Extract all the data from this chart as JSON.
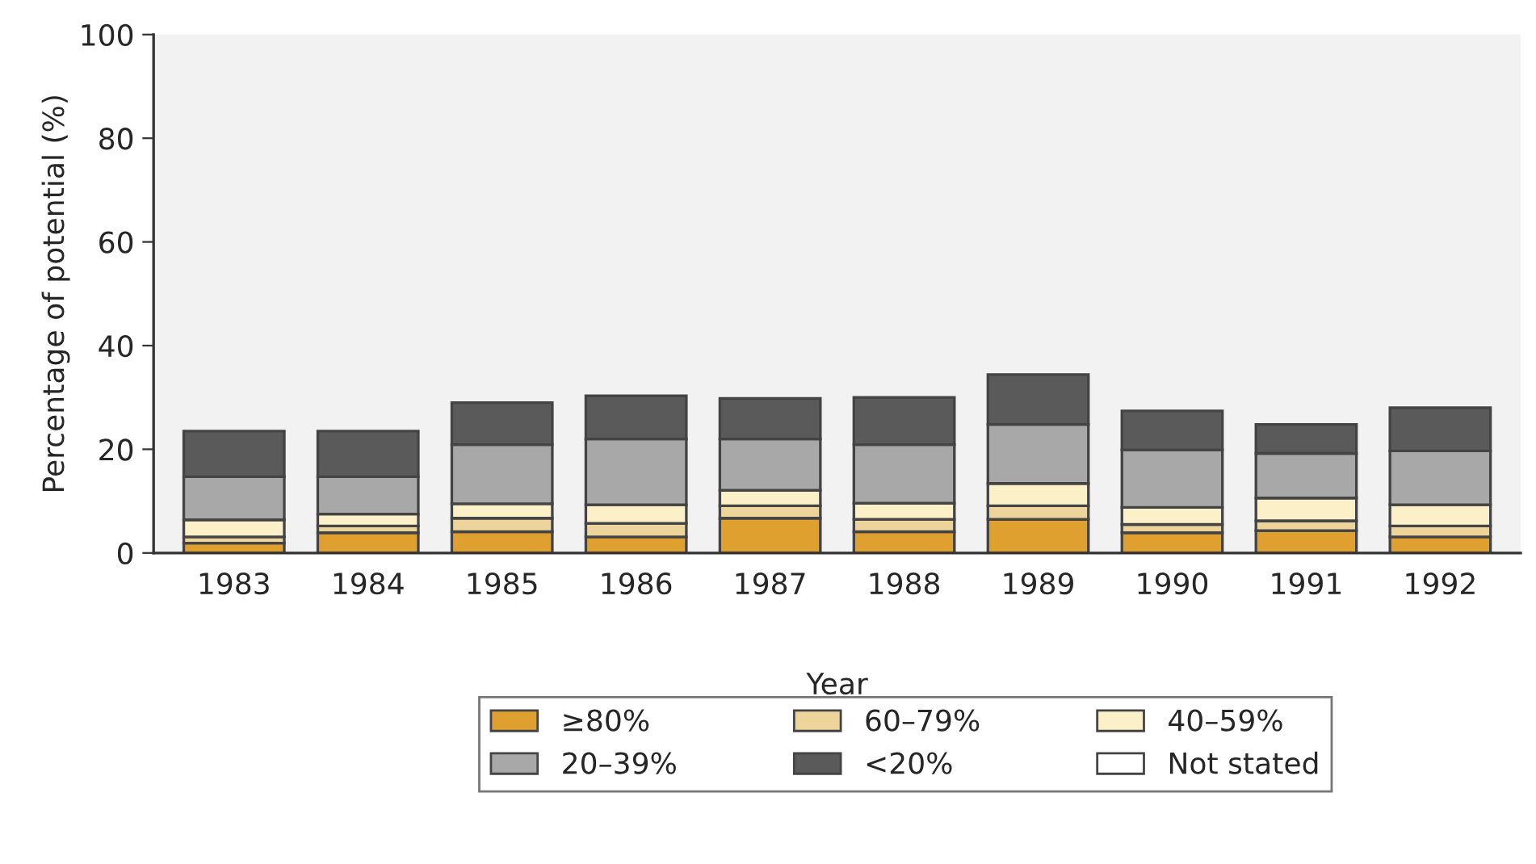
{
  "chart_data": {
    "type": "bar",
    "stacked": true,
    "xlabel": "Year",
    "ylabel": "Percentage of potential (%)",
    "categories": [
      "1983",
      "1984",
      "1985",
      "1986",
      "1987",
      "1988",
      "1989",
      "1990",
      "1991",
      "1992"
    ],
    "series": [
      {
        "name": "≥80%",
        "color": "#e0a030",
        "values": [
          1.9,
          3.9,
          4.1,
          3.1,
          6.7,
          4.1,
          6.5,
          3.9,
          4.3,
          3.1
        ]
      },
      {
        "name": "60–79%",
        "color": "#edd49a",
        "values": [
          1.2,
          1.3,
          2.6,
          2.6,
          2.4,
          2.4,
          2.6,
          1.6,
          1.9,
          2.1
        ]
      },
      {
        "name": "40–59%",
        "color": "#fbf0c8",
        "values": [
          3.3,
          2.3,
          2.8,
          3.6,
          3.0,
          3.1,
          4.3,
          3.3,
          4.4,
          4.1
        ]
      },
      {
        "name": "20–39%",
        "color": "#a8a8a8",
        "values": [
          8.3,
          7.2,
          11.4,
          12.7,
          9.9,
          11.3,
          11.4,
          11.1,
          8.6,
          10.4
        ]
      },
      {
        "name": "<20%",
        "color": "#5a5a5a",
        "values": [
          8.8,
          8.8,
          8.1,
          8.3,
          7.8,
          9.1,
          9.6,
          7.5,
          5.6,
          8.3
        ]
      },
      {
        "name": "Not stated",
        "color": "#ffffff",
        "values": [
          null,
          null,
          null,
          null,
          null,
          null,
          null,
          null,
          null,
          null
        ]
      }
    ],
    "ylim": [
      0,
      100
    ],
    "yticks": [
      0,
      20,
      40,
      60,
      80,
      100
    ],
    "grid": false,
    "legend": "bottom"
  }
}
